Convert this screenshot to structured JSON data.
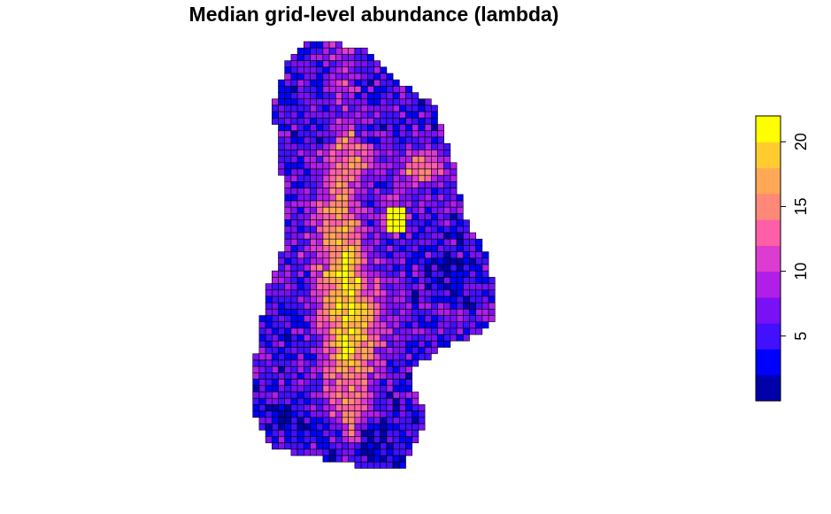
{
  "title": "Median grid-level abundance (lambda)",
  "chart_data": {
    "type": "heatmap",
    "title": "Median grid-level abundance (lambda)",
    "xlabel": "",
    "ylabel": "",
    "value_range": [
      0,
      22
    ],
    "legend": {
      "position": "right",
      "orientation": "vertical",
      "breaks": [
        0,
        2,
        4,
        6,
        8,
        10,
        12,
        14,
        16,
        18,
        20,
        22
      ],
      "colors": [
        "#0000AA",
        "#0000FF",
        "#4010FF",
        "#7A10F5",
        "#B01EE8",
        "#DC3CD0",
        "#FF5FA6",
        "#FF8878",
        "#FFA855",
        "#FFCC30",
        "#FFFF00"
      ],
      "tick_values": [
        5,
        10,
        15,
        20
      ],
      "tick_labels": [
        "5",
        "10",
        "15",
        "20"
      ]
    },
    "grid_cell_border": "#000000",
    "regions": [
      {
        "name": "central-north-south-high-abundance-band",
        "approx_value": 16
      },
      {
        "name": "eastern-hotspot",
        "approx_value": 21
      },
      {
        "name": "southern-low-abundance-area",
        "approx_value": 3
      },
      {
        "name": "surrounding-area",
        "approx_value": 8
      }
    ]
  }
}
